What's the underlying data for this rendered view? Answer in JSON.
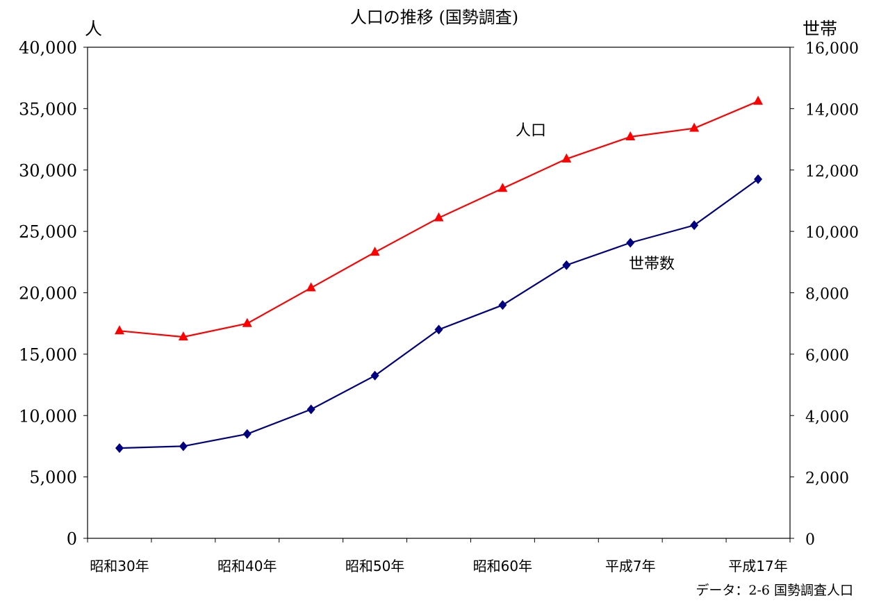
{
  "chart_data": {
    "type": "line",
    "title": "人口の推移 (国勢調査)",
    "left_axis": {
      "unit_label": "人",
      "ylim": [
        0,
        40000
      ],
      "ticks": [
        0,
        5000,
        10000,
        15000,
        20000,
        25000,
        30000,
        35000,
        40000
      ],
      "tick_labels": [
        "0",
        "5,000",
        "10,000",
        "15,000",
        "20,000",
        "25,000",
        "30,000",
        "35,000",
        "40,000"
      ]
    },
    "right_axis": {
      "unit_label": "世帯",
      "ylim": [
        0,
        16000
      ],
      "ticks": [
        0,
        2000,
        4000,
        6000,
        8000,
        10000,
        12000,
        14000,
        16000
      ],
      "tick_labels": [
        "0",
        "2,000",
        "4,000",
        "6,000",
        "8,000",
        "10,000",
        "12,000",
        "14,000",
        "16,000"
      ]
    },
    "categories": [
      "昭和30年",
      "",
      "昭和40年",
      "",
      "昭和50年",
      "",
      "昭和60年",
      "",
      "平成7年",
      "",
      "平成17年"
    ],
    "series": [
      {
        "name": "人口",
        "axis": "left",
        "color": "#ff0000",
        "marker": "triangle",
        "values": [
          16900,
          16400,
          17500,
          20400,
          23300,
          26100,
          28500,
          30900,
          32700,
          33400,
          35600
        ]
      },
      {
        "name": "世帯数",
        "axis": "right",
        "color": "#000080",
        "marker": "diamond",
        "values": [
          2940,
          3000,
          3400,
          4200,
          5300,
          6800,
          7600,
          8900,
          9630,
          10200,
          11700
        ]
      }
    ],
    "grid": false,
    "legend": "inline labels near lines",
    "source_note": "データ：2-6 国勢調査人口"
  }
}
